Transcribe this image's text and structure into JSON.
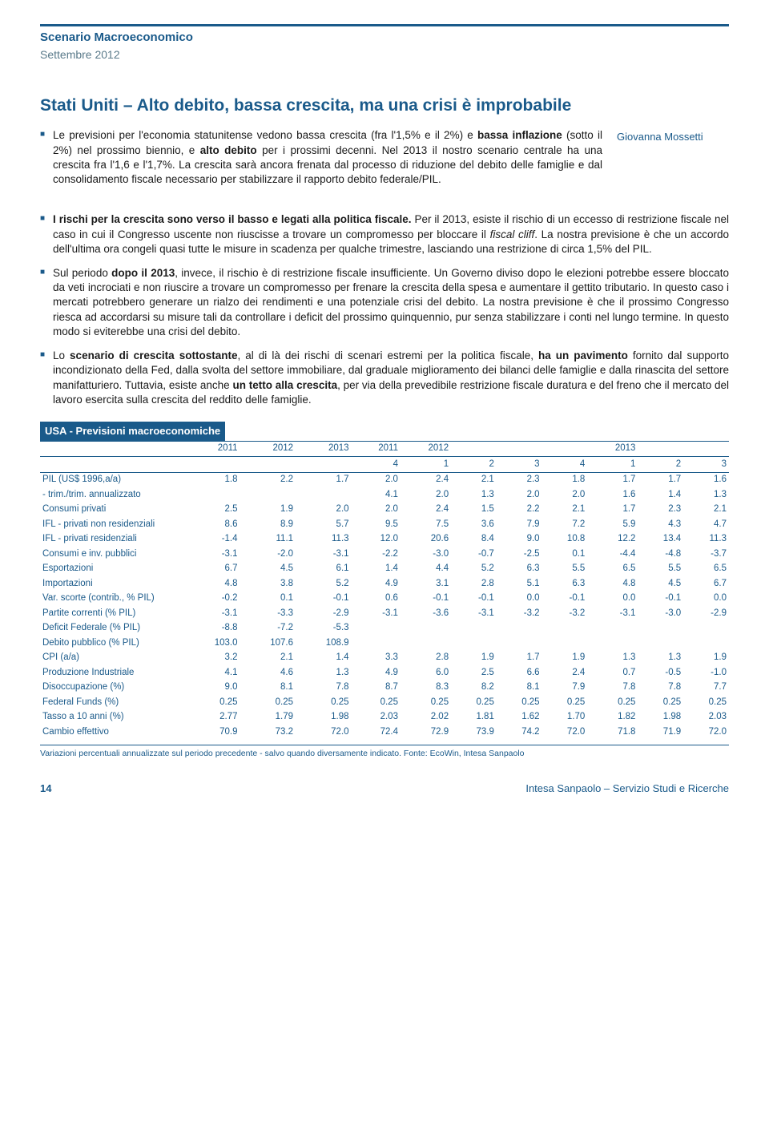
{
  "header": {
    "title": "Scenario Macroeconomico",
    "subtitle": "Settembre 2012"
  },
  "main_title": "Stati Uniti – Alto debito, bassa crescita, ma una crisi è improbabile",
  "author": "Giovanna Mossetti",
  "bullets": {
    "b1_p1": "Le previsioni per l'economia statunitense vedono bassa crescita (fra l'1,5% e il 2%) e ",
    "b1_p2": "bassa inflazione",
    "b1_p3": " (sotto il 2%) nel prossimo biennio, e ",
    "b1_p4": "alto debito",
    "b1_p5": " per i prossimi decenni. Nel 2013 il nostro scenario centrale ha una crescita fra l'1,6 e l'1,7%. La crescita sarà ancora frenata dal processo di riduzione del debito delle famiglie e dal consolidamento fiscale necessario per stabilizzare il rapporto debito federale/PIL.",
    "b2_p1": "I rischi per la crescita sono verso il basso e legati alla politica fiscale.",
    "b2_p2": " Per il 2013, esiste il rischio di un eccesso di restrizione fiscale nel caso in cui il Congresso uscente non riuscisse a trovare un compromesso per bloccare il ",
    "b2_p3": "fiscal cliff",
    "b2_p4": ". La nostra previsione è che un accordo dell'ultima ora congeli quasi tutte le misure in scadenza per qualche trimestre, lasciando una restrizione di circa 1,5% del PIL.",
    "b3_p1": "Sul periodo ",
    "b3_p2": "dopo il 2013",
    "b3_p3": ", invece, il rischio è di restrizione fiscale insufficiente. Un Governo diviso dopo le elezioni potrebbe essere bloccato da veti incrociati e non riuscire a trovare un compromesso per frenare la crescita della spesa e aumentare il gettito tributario. In questo caso i mercati potrebbero generare un rialzo dei rendimenti e una potenziale crisi del debito. La nostra previsione è che il prossimo Congresso riesca ad accordarsi su misure tali da controllare i deficit del prossimo quinquennio, pur senza stabilizzare i conti nel lungo termine. In questo modo si eviterebbe una crisi del debito.",
    "b4_p1": "Lo ",
    "b4_p2": "scenario di crescita sottostante",
    "b4_p3": ", al di là dei rischi di scenari estremi per la politica fiscale, ",
    "b4_p4": "ha un pavimento",
    "b4_p5": " fornito dal supporto incondizionato della Fed, dalla svolta del settore immobiliare, dal graduale miglioramento dei bilanci delle famiglie e dalla rinascita del settore manifatturiero. Tuttavia, esiste anche ",
    "b4_p6": "un tetto alla crescita",
    "b4_p7": ", per via della prevedibile restrizione fiscale duratura e del freno che il mercato del lavoro esercita sulla crescita del reddito delle famiglie."
  },
  "table": {
    "title": "USA - Previsioni macroeconomiche",
    "year_headers": [
      "",
      "2011",
      "2012",
      "2013",
      "2011",
      "2012",
      "",
      "",
      "",
      "2013",
      "",
      ""
    ],
    "q_headers": [
      "",
      "",
      "",
      "",
      "4",
      "1",
      "2",
      "3",
      "4",
      "1",
      "2",
      "3"
    ],
    "rows": [
      {
        "label": "PIL (US$ 1996,a/a)",
        "v": [
          "1.8",
          "2.2",
          "1.7",
          "2.0",
          "2.4",
          "2.1",
          "2.3",
          "1.8",
          "1.7",
          "1.7",
          "1.6"
        ]
      },
      {
        "label": "- trim./trim. annualizzato",
        "v": [
          "",
          "",
          "",
          "4.1",
          "2.0",
          "1.3",
          "2.0",
          "2.0",
          "1.6",
          "1.4",
          "1.3"
        ]
      },
      {
        "label": "Consumi privati",
        "v": [
          "2.5",
          "1.9",
          "2.0",
          "2.0",
          "2.4",
          "1.5",
          "2.2",
          "2.1",
          "1.7",
          "2.3",
          "2.1"
        ]
      },
      {
        "label": "IFL - privati non residenziali",
        "v": [
          "8.6",
          "8.9",
          "5.7",
          "9.5",
          "7.5",
          "3.6",
          "7.9",
          "7.2",
          "5.9",
          "4.3",
          "4.7"
        ]
      },
      {
        "label": "IFL - privati residenziali",
        "v": [
          "-1.4",
          "11.1",
          "11.3",
          "12.0",
          "20.6",
          "8.4",
          "9.0",
          "10.8",
          "12.2",
          "13.4",
          "11.3"
        ]
      },
      {
        "label": "Consumi e inv. pubblici",
        "v": [
          "-3.1",
          "-2.0",
          "-3.1",
          "-2.2",
          "-3.0",
          "-0.7",
          "-2.5",
          "0.1",
          "-4.4",
          "-4.8",
          "-3.7"
        ]
      },
      {
        "label": "Esportazioni",
        "v": [
          "6.7",
          "4.5",
          "6.1",
          "1.4",
          "4.4",
          "5.2",
          "6.3",
          "5.5",
          "6.5",
          "5.5",
          "6.5"
        ]
      },
      {
        "label": "Importazioni",
        "v": [
          "4.8",
          "3.8",
          "5.2",
          "4.9",
          "3.1",
          "2.8",
          "5.1",
          "6.3",
          "4.8",
          "4.5",
          "6.7"
        ]
      },
      {
        "label": "Var. scorte (contrib., % PIL)",
        "v": [
          "-0.2",
          "0.1",
          "-0.1",
          "0.6",
          "-0.1",
          "-0.1",
          "0.0",
          "-0.1",
          "0.0",
          "-0.1",
          "0.0"
        ]
      },
      {
        "label": "Partite correnti (% PIL)",
        "v": [
          "-3.1",
          "-3.3",
          "-2.9",
          "-3.1",
          "-3.6",
          "-3.1",
          "-3.2",
          "-3.2",
          "-3.1",
          "-3.0",
          "-2.9"
        ]
      },
      {
        "label": "Deficit Federale (% PIL)",
        "v": [
          "-8.8",
          "-7.2",
          "-5.3",
          "",
          "",
          "",
          "",
          "",
          "",
          "",
          ""
        ]
      },
      {
        "label": "Debito pubblico (% PIL)",
        "v": [
          "103.0",
          "107.6",
          "108.9",
          "",
          "",
          "",
          "",
          "",
          "",
          "",
          ""
        ]
      },
      {
        "label": "CPI (a/a)",
        "v": [
          "3.2",
          "2.1",
          "1.4",
          "3.3",
          "2.8",
          "1.9",
          "1.7",
          "1.9",
          "1.3",
          "1.3",
          "1.9"
        ]
      },
      {
        "label": "Produzione Industriale",
        "v": [
          "4.1",
          "4.6",
          "1.3",
          "4.9",
          "6.0",
          "2.5",
          "6.6",
          "2.4",
          "0.7",
          "-0.5",
          "-1.0"
        ]
      },
      {
        "label": "Disoccupazione (%)",
        "v": [
          "9.0",
          "8.1",
          "7.8",
          "8.7",
          "8.3",
          "8.2",
          "8.1",
          "7.9",
          "7.8",
          "7.8",
          "7.7"
        ]
      },
      {
        "label": "Federal Funds (%)",
        "v": [
          "0.25",
          "0.25",
          "0.25",
          "0.25",
          "0.25",
          "0.25",
          "0.25",
          "0.25",
          "0.25",
          "0.25",
          "0.25"
        ]
      },
      {
        "label": "Tasso a 10 anni (%)",
        "v": [
          "2.77",
          "1.79",
          "1.98",
          "2.03",
          "2.02",
          "1.81",
          "1.62",
          "1.70",
          "1.82",
          "1.98",
          "2.03"
        ]
      },
      {
        "label": "Cambio effettivo",
        "v": [
          "70.9",
          "73.2",
          "72.0",
          "72.4",
          "72.9",
          "73.9",
          "74.2",
          "72.0",
          "71.8",
          "71.9",
          "72.0"
        ]
      }
    ],
    "footnote": "Variazioni percentuali annualizzate sul periodo precedente - salvo quando diversamente indicato. Fonte: EcoWin, Intesa Sanpaolo",
    "colors": {
      "brand": "#1a5a8a",
      "text": "#1a1a1a",
      "bg": "#ffffff"
    }
  },
  "footer": {
    "page": "14",
    "right": "Intesa Sanpaolo – Servizio Studi e Ricerche"
  }
}
